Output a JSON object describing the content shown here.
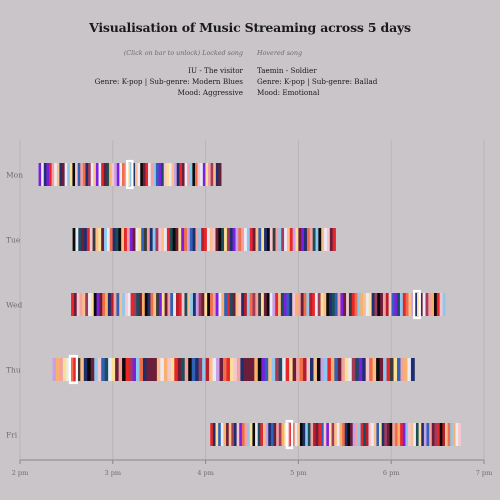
{
  "title": "Visualisation of Music Streaming across 5 days",
  "info": {
    "locked_hint": "(Click on bar to unlock) Locked song",
    "hover_hint": "Hovered song",
    "locked_song": {
      "song": "IU - The visitor",
      "genre": "Genre: K-pop  |  Sub-genre: Modern Blues",
      "mood": "Mood: Aggressive"
    },
    "hovered_song": {
      "song": "Taemin - Soldier",
      "genre": "Genre: K-pop  |  Sub-genre: Ballad",
      "mood": "Mood: Emotional"
    }
  },
  "colors": {
    "background": "#c9c5c8",
    "gridline": "#b9b5b8",
    "axis": "#8a868a",
    "highlight": "#ffffff",
    "palette": [
      "#7b1fe0",
      "#eaeaf6",
      "#1f2f6e",
      "#e8262a",
      "#f2a3a0",
      "#f9c08a",
      "#6b1e3a",
      "#8ec8ec",
      "#fbdf97",
      "#0b0b0b",
      "#f3c6d0",
      "#2f62b6",
      "#f06d4a",
      "#a33a5a",
      "#1b4d5c",
      "#f8b06a",
      "#c7a0e8",
      "#3a3a3a",
      "#b51e2a",
      "#ffd1dc"
    ]
  },
  "chart_data": {
    "type": "timeline-bars",
    "x_axis": {
      "domain": [
        "2 pm",
        "7 pm"
      ],
      "ticks": [
        "2 pm",
        "3 pm",
        "4 pm",
        "5 pm",
        "6 pm",
        "7 pm"
      ]
    },
    "y_axis": {
      "categories": [
        "Mon",
        "Tue",
        "Wed",
        "Thu",
        "Fri"
      ]
    },
    "grid": true,
    "series": [
      {
        "day": "Mon",
        "start": "2:12 pm",
        "end": "4:10 pm",
        "pattern": [
          0,
          1,
          2,
          0,
          3,
          4,
          1,
          5,
          2,
          6,
          1,
          7,
          8,
          9,
          10,
          11,
          4,
          12,
          2,
          13,
          1,
          5,
          0,
          1,
          3,
          6,
          14,
          15,
          10,
          16,
          0,
          1,
          12,
          4,
          8,
          7,
          2,
          5,
          1,
          9,
          6,
          3,
          1,
          4,
          7,
          11,
          0,
          14,
          10,
          8,
          1,
          5,
          16,
          2,
          3,
          6,
          1,
          4,
          7,
          9,
          12,
          10,
          1,
          0,
          8,
          4,
          13,
          5,
          2,
          6
        ],
        "highlight_index": [
          34,
          35
        ]
      },
      {
        "day": "Tue",
        "start": "2:34 pm",
        "end": "5:24 pm",
        "pattern": [
          9,
          1,
          14,
          6,
          2,
          3,
          10,
          17,
          5,
          8,
          6,
          7,
          1,
          12,
          2,
          14,
          9,
          5,
          3,
          4,
          0,
          6,
          1,
          8,
          11,
          17,
          4,
          2,
          7,
          13,
          10,
          5,
          1,
          3,
          14,
          9,
          6,
          8,
          0,
          12,
          16,
          11,
          2,
          4,
          7,
          18,
          3,
          1,
          5,
          10,
          6,
          9,
          14,
          8,
          13,
          2,
          0,
          16,
          12,
          4,
          1,
          7,
          3,
          6,
          5,
          11,
          8,
          2,
          9,
          10,
          17,
          4,
          7,
          13,
          1,
          5,
          3,
          16,
          8,
          6,
          0,
          2,
          12,
          4,
          14,
          7,
          9,
          5,
          1,
          10,
          6,
          3
        ],
        "highlight_index": []
      },
      {
        "day": "Wed",
        "start": "2:33 pm",
        "end": "6:35 pm",
        "pattern": [
          3,
          6,
          10,
          4,
          5,
          13,
          1,
          8,
          9,
          0,
          6,
          12,
          15,
          2,
          18,
          4,
          11,
          5,
          7,
          10,
          1,
          3,
          13,
          14,
          6,
          15,
          9,
          2,
          12,
          5,
          17,
          0,
          8,
          6,
          4,
          11,
          1,
          18,
          3,
          10,
          14,
          5,
          7,
          2,
          16,
          13,
          6,
          8,
          9,
          12,
          4,
          0,
          1,
          15,
          11,
          3,
          14,
          6,
          5,
          10,
          2,
          18,
          7,
          12,
          13,
          4,
          17,
          8,
          6,
          9,
          1,
          16,
          3,
          5,
          14,
          0,
          11,
          2,
          10,
          15,
          4,
          6,
          12,
          7,
          18,
          3,
          1,
          13,
          8,
          5,
          9,
          2,
          14,
          11,
          4,
          0,
          6,
          10,
          17,
          3,
          12,
          7,
          15,
          5,
          1,
          8,
          2,
          13,
          9,
          6,
          4,
          18,
          10,
          11,
          0,
          14,
          7,
          3,
          12,
          5,
          16,
          2,
          8,
          6,
          1,
          13,
          4,
          15,
          9,
          3,
          10,
          7
        ],
        "highlight_index": [
          121,
          122
        ]
      },
      {
        "day": "Thu",
        "start": "2:21 pm",
        "end": "6:15 pm",
        "pattern": [
          16,
          15,
          4,
          8,
          1,
          12,
          3,
          17,
          5,
          2,
          9,
          6,
          7,
          10,
          11,
          14,
          1,
          8,
          6,
          4,
          9,
          3,
          13,
          0,
          7,
          12,
          2,
          6,
          6,
          6,
          5,
          1,
          15,
          10,
          8,
          3,
          6,
          14,
          4,
          9,
          11,
          2,
          13,
          7,
          18,
          5,
          1,
          16,
          6,
          12,
          3,
          8,
          10,
          4,
          2,
          6,
          6,
          6,
          15,
          9,
          0,
          11,
          5,
          7,
          13,
          14,
          1,
          3,
          8,
          6,
          4,
          12,
          18,
          10,
          2,
          5,
          9,
          16,
          7,
          3,
          15,
          11,
          6,
          4,
          8,
          1,
          13,
          14,
          0,
          2,
          10,
          12,
          5,
          9,
          6,
          7,
          3,
          17,
          8,
          11,
          4,
          15,
          1,
          2
        ],
        "highlight_index": [
          5,
          6
        ]
      },
      {
        "day": "Fri",
        "start": "4:03 pm",
        "end": "6:45 pm",
        "pattern": [
          3,
          2,
          8,
          11,
          1,
          15,
          6,
          5,
          13,
          2,
          10,
          0,
          12,
          4,
          7,
          8,
          9,
          1,
          14,
          3,
          5,
          16,
          2,
          11,
          6,
          4,
          13,
          15,
          8,
          10,
          3,
          12,
          1,
          5,
          9,
          2,
          7,
          14,
          4,
          18,
          6,
          3,
          11,
          10,
          0,
          8,
          13,
          5,
          1,
          15,
          12,
          2,
          9,
          6,
          16,
          4,
          7,
          3,
          14,
          18,
          10,
          1,
          5,
          11,
          8,
          2,
          13,
          6,
          9,
          4,
          12,
          15,
          3,
          0,
          7,
          10,
          5,
          1,
          14,
          8,
          2,
          16,
          11,
          4,
          6,
          13,
          3,
          9,
          18,
          5,
          12,
          7,
          15,
          1,
          10
        ],
        "highlight_index": [
          29,
          30
        ]
      }
    ]
  }
}
